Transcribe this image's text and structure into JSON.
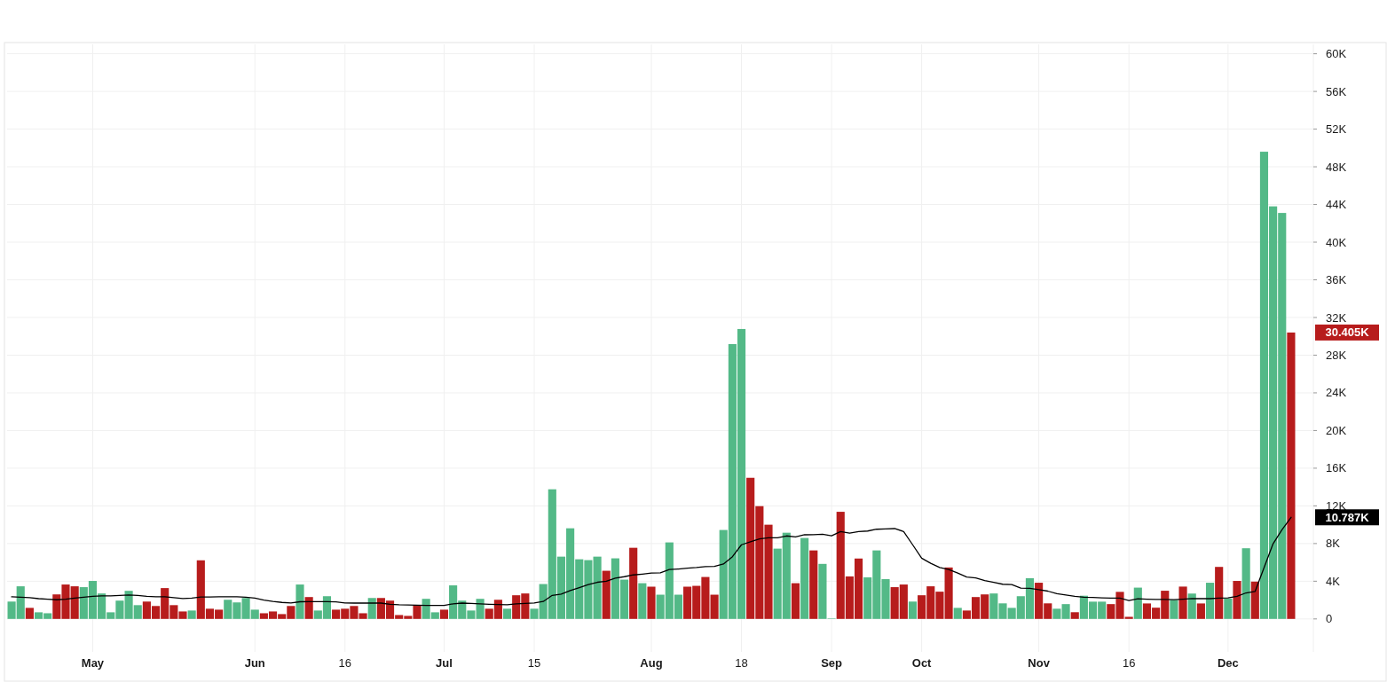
{
  "chart_data": {
    "type": "bar",
    "categories": [
      null,
      null,
      null,
      null,
      null,
      null,
      null,
      null,
      null,
      "May",
      null,
      null,
      null,
      null,
      null,
      null,
      null,
      null,
      null,
      null,
      null,
      null,
      null,
      null,
      null,
      null,
      null,
      "Jun",
      null,
      null,
      null,
      null,
      null,
      null,
      null,
      null,
      null,
      "16",
      null,
      null,
      null,
      null,
      null,
      null,
      null,
      null,
      null,
      null,
      "Jul",
      null,
      null,
      null,
      null,
      null,
      null,
      null,
      null,
      null,
      "15",
      null,
      null,
      null,
      null,
      null,
      null,
      null,
      null,
      null,
      null,
      null,
      null,
      "Aug",
      null,
      null,
      null,
      null,
      null,
      null,
      null,
      null,
      null,
      "18",
      null,
      null,
      null,
      null,
      null,
      null,
      null,
      null,
      null,
      "Sep",
      null,
      null,
      null,
      null,
      null,
      null,
      null,
      null,
      null,
      "Oct",
      null,
      null,
      null,
      null,
      null,
      null,
      null,
      null,
      null,
      null,
      null,
      null,
      "Nov",
      null,
      null,
      null,
      null,
      null,
      null,
      null,
      null,
      null,
      "16",
      null,
      null,
      null,
      null,
      null,
      null,
      null,
      null,
      null,
      null,
      "Dec",
      null,
      null,
      null,
      null,
      null,
      null,
      null
    ],
    "series": [
      {
        "colors": [
          "#53b987",
          "#53b987",
          "#b71c1c",
          "#53b987",
          "#53b987",
          "#b71c1c",
          "#b71c1c",
          "#b71c1c",
          "#53b987",
          "#53b987",
          "#53b987",
          "#53b987",
          "#53b987",
          "#53b987",
          "#53b987",
          "#b71c1c",
          "#b71c1c",
          "#b71c1c",
          "#b71c1c",
          "#b71c1c",
          "#53b987",
          "#b71c1c",
          "#b71c1c",
          "#b71c1c",
          "#53b987",
          "#53b987",
          "#53b987",
          "#53b987",
          "#b71c1c",
          "#b71c1c",
          "#b71c1c",
          "#b71c1c",
          "#53b987",
          "#b71c1c",
          "#53b987",
          "#53b987",
          "#b71c1c",
          "#b71c1c",
          "#b71c1c",
          "#b71c1c",
          "#53b987",
          "#b71c1c",
          "#b71c1c",
          "#b71c1c",
          "#b71c1c",
          "#b71c1c",
          "#53b987",
          "#53b987",
          "#b71c1c",
          "#53b987",
          "#53b987",
          "#53b987",
          "#53b987",
          "#b71c1c",
          "#b71c1c",
          "#53b987",
          "#b71c1c",
          "#b71c1c",
          "#53b987",
          "#53b987",
          "#53b987",
          "#53b987",
          "#53b987",
          "#53b987",
          "#53b987",
          "#53b987",
          "#b71c1c",
          "#53b987",
          "#53b987",
          "#b71c1c",
          "#53b987",
          "#b71c1c",
          "#53b987",
          "#53b987",
          "#53b987",
          "#b71c1c",
          "#b71c1c",
          "#b71c1c",
          "#b71c1c",
          "#53b987",
          "#53b987",
          "#53b987",
          "#b71c1c",
          "#b71c1c",
          "#b71c1c",
          "#53b987",
          "#53b987",
          "#b71c1c",
          "#53b987",
          "#b71c1c",
          "#53b987",
          "#53b987",
          "#b71c1c",
          "#b71c1c",
          "#b71c1c",
          "#53b987",
          "#53b987",
          "#53b987",
          "#b71c1c",
          "#b71c1c",
          "#53b987",
          "#b71c1c",
          "#b71c1c",
          "#b71c1c",
          "#b71c1c",
          "#53b987",
          "#b71c1c",
          "#b71c1c",
          "#b71c1c",
          "#53b987",
          "#53b987",
          "#53b987",
          "#53b987",
          "#53b987",
          "#b71c1c",
          "#b71c1c",
          "#53b987",
          "#53b987",
          "#b71c1c",
          "#53b987",
          "#53b987",
          "#53b987",
          "#b71c1c",
          "#b71c1c",
          "#b71c1c",
          "#53b987",
          "#b71c1c",
          "#b71c1c",
          "#b71c1c",
          "#53b987",
          "#b71c1c",
          "#53b987",
          "#b71c1c",
          "#53b987",
          "#b71c1c",
          "#53b987",
          "#b71c1c",
          "#53b987",
          "#b71c1c",
          "#53b987",
          "#53b987",
          "#53b987",
          "#b71c1c"
        ],
        "values": [
          1840,
          3460,
          1170,
          700,
          600,
          2600,
          3650,
          3460,
          3370,
          4030,
          2700,
          700,
          1940,
          2980,
          1460,
          1840,
          1370,
          3270,
          1460,
          790,
          890,
          6220,
          1080,
          980,
          2030,
          1750,
          2220,
          980,
          600,
          790,
          510,
          1370,
          3650,
          2320,
          890,
          2410,
          980,
          1080,
          1370,
          600,
          2220,
          2220,
          1940,
          410,
          320,
          1460,
          2130,
          700,
          980,
          3560,
          1940,
          890,
          2130,
          1080,
          2030,
          1080,
          2510,
          2700,
          1080,
          3700,
          13760,
          6610,
          9620,
          6330,
          6240,
          6610,
          5110,
          6430,
          4170,
          7550,
          3790,
          3420,
          2570,
          8120,
          2570,
          3420,
          3510,
          4450,
          2570,
          9440,
          29180,
          30780,
          14980,
          11970,
          10000,
          7460,
          9150,
          3790,
          8590,
          7270,
          5840,
          50,
          11370,
          4510,
          6410,
          4410,
          7270,
          4220,
          3370,
          3650,
          1840,
          2510,
          3460,
          2890,
          5460,
          1170,
          890,
          2320,
          2600,
          2700,
          1650,
          1170,
          2410,
          4320,
          3840,
          1650,
          1080,
          1570,
          710,
          2460,
          1830,
          1830,
          1570,
          2870,
          220,
          3320,
          1640,
          1190,
          2990,
          2010,
          3430,
          2690,
          1640,
          3840,
          5520,
          2160,
          4030,
          7500,
          3960,
          49600,
          43800,
          43100,
          30405
        ]
      },
      {
        "type": "line",
        "color": "#000000",
        "values": [
          2350,
          2300,
          2250,
          2150,
          2100,
          2030,
          2100,
          2200,
          2300,
          2400,
          2450,
          2450,
          2500,
          2540,
          2500,
          2400,
          2350,
          2350,
          2250,
          2160,
          2200,
          2320,
          2320,
          2350,
          2350,
          2350,
          2300,
          2200,
          2000,
          1850,
          1750,
          1700,
          1820,
          1840,
          1840,
          1840,
          1800,
          1700,
          1680,
          1680,
          1680,
          1680,
          1550,
          1500,
          1480,
          1450,
          1430,
          1430,
          1430,
          1600,
          1680,
          1650,
          1600,
          1550,
          1520,
          1500,
          1600,
          1650,
          1700,
          1850,
          2500,
          2630,
          3000,
          3320,
          3640,
          3890,
          4000,
          4330,
          4480,
          4670,
          4760,
          4860,
          4890,
          5240,
          5300,
          5390,
          5450,
          5550,
          5580,
          5830,
          6610,
          7870,
          8180,
          8500,
          8620,
          8620,
          8810,
          8710,
          8930,
          8950,
          8980,
          8830,
          9270,
          9110,
          9270,
          9330,
          9520,
          9560,
          9590,
          9270,
          7870,
          6440,
          5900,
          5460,
          5240,
          4860,
          4440,
          4350,
          4060,
          3870,
          3680,
          3650,
          3270,
          3240,
          3110,
          2950,
          2670,
          2540,
          2390,
          2310,
          2280,
          2240,
          2200,
          2200,
          1940,
          2130,
          2090,
          2070,
          2060,
          2050,
          2100,
          2160,
          2150,
          2150,
          2200,
          2240,
          2390,
          2760,
          2910,
          5450,
          7980,
          9480,
          10787
        ]
      }
    ],
    "ylim": [
      -3500,
      61000
    ],
    "yticks": [
      0,
      {
        "value": 4000,
        "label": "4K"
      },
      {
        "value": 8000,
        "label": "8K"
      },
      {
        "value": 12000,
        "label": "12K"
      },
      {
        "value": 16000,
        "label": "16K"
      },
      {
        "value": 20000,
        "label": "20K"
      },
      {
        "value": 24000,
        "label": "24K"
      },
      {
        "value": 28000,
        "label": "28K"
      },
      {
        "value": 32000,
        "label": "32K"
      },
      {
        "value": 36000,
        "label": "36K"
      },
      {
        "value": 40000,
        "label": "40K"
      },
      {
        "value": 44000,
        "label": "44K"
      },
      {
        "value": 48000,
        "label": "48K"
      },
      {
        "value": 52000,
        "label": "52K"
      },
      {
        "value": 56000,
        "label": "56K"
      },
      {
        "value": 60000,
        "label": "60K"
      }
    ],
    "grid": true,
    "annotations": [
      "30.405K",
      "10.787K"
    ]
  }
}
